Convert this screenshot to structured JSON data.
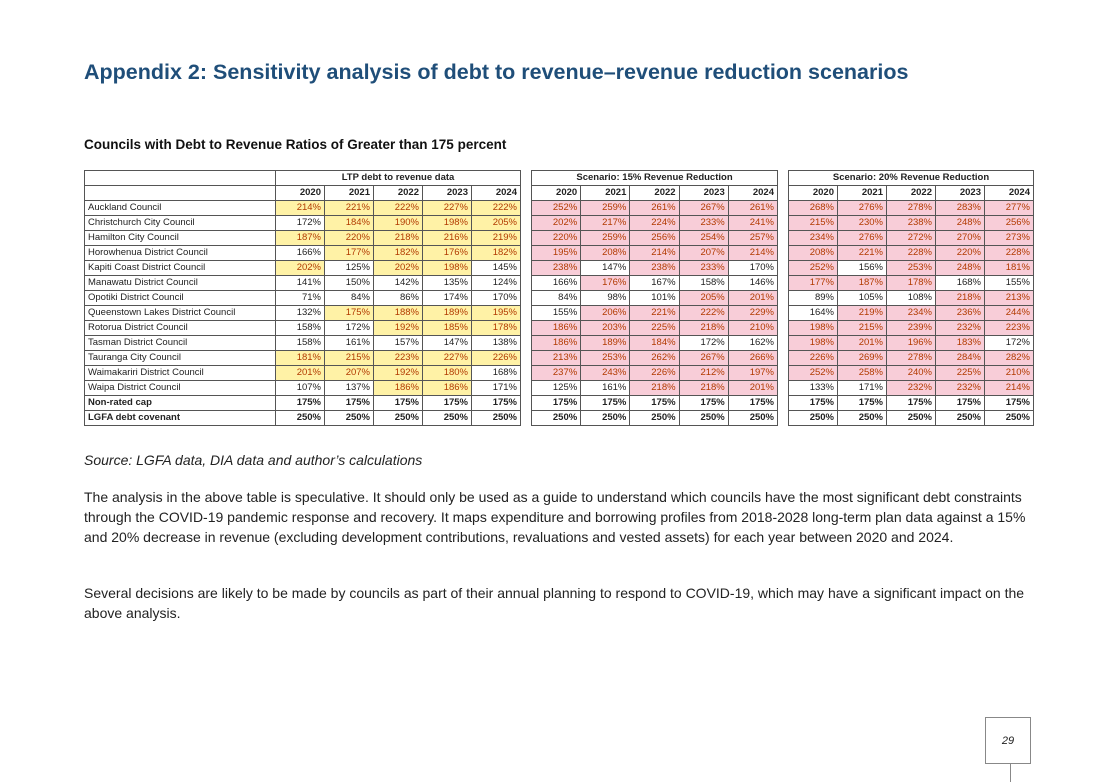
{
  "title": "Appendix 2: Sensitivity analysis of debt to revenue–revenue reduction scenarios",
  "subtitle": "Councils with Debt to Revenue Ratios of Greater than 175 percent",
  "table": {
    "groups": [
      "LTP debt to revenue data",
      "Scenario: 15% Revenue Reduction",
      "Scenario: 20% Revenue Reduction"
    ],
    "years": [
      "2020",
      "2021",
      "2022",
      "2023",
      "2024"
    ],
    "highlight_colors": {
      "yellow": "#fff2a6",
      "pink": "#f8cdd8",
      "text": "#b23a00"
    },
    "rows": [
      {
        "name": "Auckland Council",
        "bold": false,
        "ltp": [
          "214%",
          "221%",
          "222%",
          "227%",
          "222%"
        ],
        "ltp_hl": "yyyyy",
        "s15": [
          "252%",
          "259%",
          "261%",
          "267%",
          "261%"
        ],
        "s15_hl": "ppppp",
        "s20": [
          "268%",
          "276%",
          "278%",
          "283%",
          "277%"
        ],
        "s20_hl": "ppppp"
      },
      {
        "name": "Christchurch City Council",
        "bold": false,
        "ltp": [
          "172%",
          "184%",
          "190%",
          "198%",
          "205%"
        ],
        "ltp_hl": ".yyyy",
        "s15": [
          "202%",
          "217%",
          "224%",
          "233%",
          "241%"
        ],
        "s15_hl": "ppppp",
        "s20": [
          "215%",
          "230%",
          "238%",
          "248%",
          "256%"
        ],
        "s20_hl": "ppppp"
      },
      {
        "name": "Hamilton City Council",
        "bold": false,
        "ltp": [
          "187%",
          "220%",
          "218%",
          "216%",
          "219%"
        ],
        "ltp_hl": "yyyyy",
        "s15": [
          "220%",
          "259%",
          "256%",
          "254%",
          "257%"
        ],
        "s15_hl": "ppppp",
        "s20": [
          "234%",
          "276%",
          "272%",
          "270%",
          "273%"
        ],
        "s20_hl": "ppppp"
      },
      {
        "name": "Horowhenua District Council",
        "bold": false,
        "ltp": [
          "166%",
          "177%",
          "182%",
          "176%",
          "182%"
        ],
        "ltp_hl": ".yyyy",
        "s15": [
          "195%",
          "208%",
          "214%",
          "207%",
          "214%"
        ],
        "s15_hl": "ppppp",
        "s20": [
          "208%",
          "221%",
          "228%",
          "220%",
          "228%"
        ],
        "s20_hl": "ppppp"
      },
      {
        "name": "Kapiti Coast District Council",
        "bold": false,
        "ltp": [
          "202%",
          "125%",
          "202%",
          "198%",
          "145%"
        ],
        "ltp_hl": "y.yy.",
        "s15": [
          "238%",
          "147%",
          "238%",
          "233%",
          "170%"
        ],
        "s15_hl": "p.pp.",
        "s20": [
          "252%",
          "156%",
          "253%",
          "248%",
          "181%"
        ],
        "s20_hl": "p.ppp"
      },
      {
        "name": "Manawatu District Council",
        "bold": false,
        "ltp": [
          "141%",
          "150%",
          "142%",
          "135%",
          "124%"
        ],
        "ltp_hl": ".....",
        "s15": [
          "166%",
          "176%",
          "167%",
          "158%",
          "146%"
        ],
        "s15_hl": ".p...",
        "s20": [
          "177%",
          "187%",
          "178%",
          "168%",
          "155%"
        ],
        "s20_hl": "ppp.."
      },
      {
        "name": "Opotiki District Council",
        "bold": false,
        "ltp": [
          "71%",
          "84%",
          "86%",
          "174%",
          "170%"
        ],
        "ltp_hl": ".....",
        "s15": [
          "84%",
          "98%",
          "101%",
          "205%",
          "201%"
        ],
        "s15_hl": "...pp",
        "s20": [
          "89%",
          "105%",
          "108%",
          "218%",
          "213%"
        ],
        "s20_hl": "...pp"
      },
      {
        "name": "Queenstown Lakes District Council",
        "bold": false,
        "ltp": [
          "132%",
          "175%",
          "188%",
          "189%",
          "195%"
        ],
        "ltp_hl": ".yyyy",
        "s15": [
          "155%",
          "206%",
          "221%",
          "222%",
          "229%"
        ],
        "s15_hl": ".pppp",
        "s20": [
          "164%",
          "219%",
          "234%",
          "236%",
          "244%"
        ],
        "s20_hl": ".pppp"
      },
      {
        "name": "Rotorua District Council",
        "bold": false,
        "ltp": [
          "158%",
          "172%",
          "192%",
          "185%",
          "178%"
        ],
        "ltp_hl": "..yyy",
        "s15": [
          "186%",
          "203%",
          "225%",
          "218%",
          "210%"
        ],
        "s15_hl": "ppppp",
        "s20": [
          "198%",
          "215%",
          "239%",
          "232%",
          "223%"
        ],
        "s20_hl": "ppppp"
      },
      {
        "name": "Tasman District Council",
        "bold": false,
        "ltp": [
          "158%",
          "161%",
          "157%",
          "147%",
          "138%"
        ],
        "ltp_hl": ".....",
        "s15": [
          "186%",
          "189%",
          "184%",
          "172%",
          "162%"
        ],
        "s15_hl": "ppp..",
        "s20": [
          "198%",
          "201%",
          "196%",
          "183%",
          "172%"
        ],
        "s20_hl": "pppp."
      },
      {
        "name": "Tauranga City Council",
        "bold": false,
        "ltp": [
          "181%",
          "215%",
          "223%",
          "227%",
          "226%"
        ],
        "ltp_hl": "yyyyy",
        "s15": [
          "213%",
          "253%",
          "262%",
          "267%",
          "266%"
        ],
        "s15_hl": "ppppp",
        "s20": [
          "226%",
          "269%",
          "278%",
          "284%",
          "282%"
        ],
        "s20_hl": "ppppp"
      },
      {
        "name": "Waimakariri District Council",
        "bold": false,
        "ltp": [
          "201%",
          "207%",
          "192%",
          "180%",
          "168%"
        ],
        "ltp_hl": "yyyy.",
        "s15": [
          "237%",
          "243%",
          "226%",
          "212%",
          "197%"
        ],
        "s15_hl": "ppppp",
        "s20": [
          "252%",
          "258%",
          "240%",
          "225%",
          "210%"
        ],
        "s20_hl": "ppppp"
      },
      {
        "name": "Waipa District Council",
        "bold": false,
        "ltp": [
          "107%",
          "137%",
          "186%",
          "186%",
          "171%"
        ],
        "ltp_hl": "..yy.",
        "s15": [
          "125%",
          "161%",
          "218%",
          "218%",
          "201%"
        ],
        "s15_hl": "..ppp",
        "s20": [
          "133%",
          "171%",
          "232%",
          "232%",
          "214%"
        ],
        "s20_hl": "..ppp"
      },
      {
        "name": "Non-rated cap",
        "bold": true,
        "ltp": [
          "175%",
          "175%",
          "175%",
          "175%",
          "175%"
        ],
        "ltp_hl": ".....",
        "s15": [
          "175%",
          "175%",
          "175%",
          "175%",
          "175%"
        ],
        "s15_hl": ".....",
        "s20": [
          "175%",
          "175%",
          "175%",
          "175%",
          "175%"
        ],
        "s20_hl": "....."
      },
      {
        "name": "LGFA debt covenant",
        "bold": true,
        "ltp": [
          "250%",
          "250%",
          "250%",
          "250%",
          "250%"
        ],
        "ltp_hl": ".....",
        "s15": [
          "250%",
          "250%",
          "250%",
          "250%",
          "250%"
        ],
        "s15_hl": ".....",
        "s20": [
          "250%",
          "250%",
          "250%",
          "250%",
          "250%"
        ],
        "s20_hl": "....."
      }
    ]
  },
  "source": "Source: LGFA data, DIA data and author’s calculations",
  "paragraphs": [
    "The analysis in the above table is speculative. It should only be used as a guide to understand which councils have the most significant debt constraints through the COVID-19 pandemic response and recovery. It maps expenditure and borrowing profiles from 2018-2028 long-term plan data against a 15% and 20% decrease in revenue (excluding development contributions, revaluations and vested assets) for each year between 2020 and 2024.",
    "Several decisions are likely to be made by councils as part of their annual planning to respond to COVID-19, which may have a significant impact on the above analysis."
  ],
  "page_number": "29"
}
